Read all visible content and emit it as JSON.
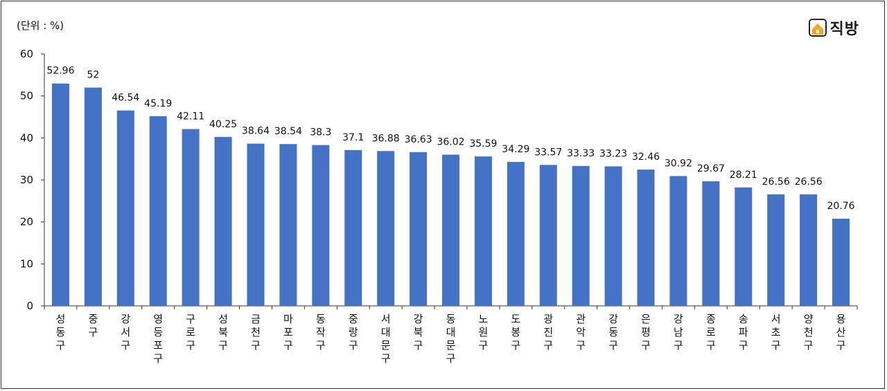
{
  "unit_label": "(단위 : %)",
  "brand": {
    "name": "직방",
    "logo_icon": "house-logo-icon",
    "logo_color": "#f5a623"
  },
  "chart_data": {
    "type": "bar",
    "categories": [
      "성동구",
      "중구",
      "강서구",
      "영등포구",
      "구로구",
      "성북구",
      "금천구",
      "마포구",
      "동작구",
      "중랑구",
      "서대문구",
      "강북구",
      "동대문구",
      "노원구",
      "도봉구",
      "광진구",
      "관악구",
      "강동구",
      "은평구",
      "강남구",
      "종로구",
      "송파구",
      "서초구",
      "양천구",
      "용산구"
    ],
    "values": [
      52.96,
      52,
      46.54,
      45.19,
      42.11,
      40.25,
      38.64,
      38.54,
      38.3,
      37.1,
      36.88,
      36.63,
      36.02,
      35.59,
      34.29,
      33.57,
      33.33,
      33.23,
      32.46,
      30.92,
      29.67,
      28.21,
      26.56,
      26.56,
      20.76
    ],
    "value_labels": [
      "52.96",
      "52",
      "46.54",
      "45.19",
      "42.11",
      "40.25",
      "38.64",
      "38.54",
      "38.3",
      "37.1",
      "36.88",
      "36.63",
      "36.02",
      "35.59",
      "34.29",
      "33.57",
      "33.33",
      "33.23",
      "32.46",
      "30.92",
      "29.67",
      "28.21",
      "26.56",
      "26.56",
      "20.76"
    ],
    "ylim": [
      0,
      60
    ],
    "yticks": [
      0,
      10,
      20,
      30,
      40,
      50,
      60
    ],
    "bar_color": "#4472c4",
    "grid": false
  }
}
